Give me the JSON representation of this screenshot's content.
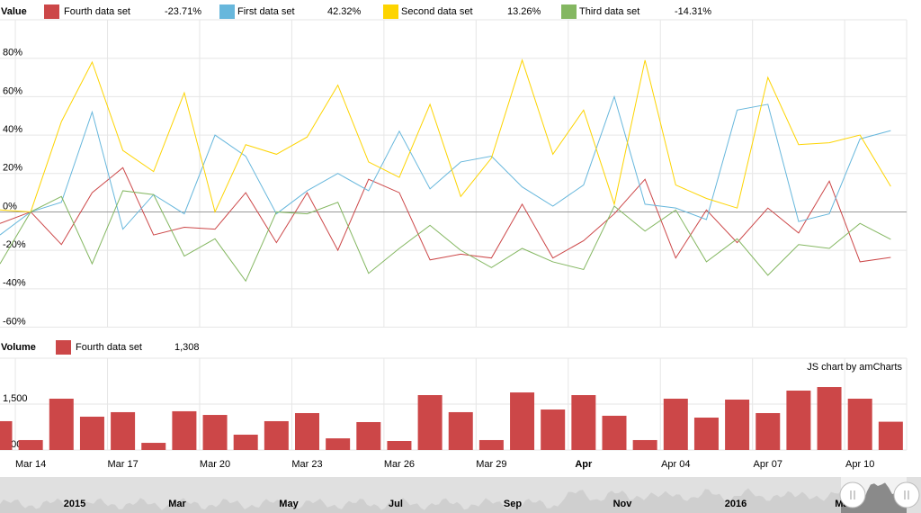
{
  "chart_data": [
    {
      "type": "line",
      "legend_title": "Value",
      "series": [
        {
          "name": "Fourth data set",
          "color": "#cc4748",
          "legend_value": "-23.71%",
          "values": [
            -6,
            0,
            -17,
            10,
            23,
            -12,
            -8,
            -9,
            10,
            -16,
            10,
            -20,
            17,
            10,
            -25,
            -22,
            -24,
            4,
            -24,
            -15,
            -1,
            17,
            -24,
            1,
            -16,
            2,
            -11,
            16,
            -26,
            -23.71
          ]
        },
        {
          "name": "First data set",
          "color": "#67b7dc",
          "legend_value": "42.32%",
          "values": [
            -12,
            0,
            5,
            52,
            -9,
            9,
            -1,
            40,
            29,
            -1,
            11,
            20,
            11,
            42,
            12,
            26,
            29,
            13,
            3,
            14,
            60,
            4,
            2,
            -4,
            53,
            56,
            -5,
            -1,
            38,
            42.32
          ]
        },
        {
          "name": "Second data set",
          "color": "#fdd400",
          "legend_value": "13.26%",
          "values": [
            1,
            0,
            47,
            78,
            32,
            21,
            62,
            0,
            35,
            30,
            39,
            66,
            26,
            18,
            56,
            8,
            28,
            79,
            30,
            53,
            4,
            79,
            14,
            7,
            2,
            70,
            35,
            36,
            40,
            13.26
          ]
        },
        {
          "name": "Third data set",
          "color": "#84b761",
          "legend_value": "-14.31%",
          "values": [
            -27,
            0,
            8,
            -27,
            11,
            9,
            -23,
            -14,
            -36,
            0,
            -1,
            5,
            -32,
            -19,
            -7,
            -20,
            -29,
            -19,
            -26,
            -30,
            3,
            -10,
            1,
            -26,
            -14,
            -33,
            -17,
            -19,
            -6,
            -14.31
          ]
        }
      ],
      "ylim": [
        -60,
        100
      ],
      "yticks": [
        {
          "value": -60,
          "label": "-60%"
        },
        {
          "value": -40,
          "label": "-40%"
        },
        {
          "value": -20,
          "label": "-20%"
        },
        {
          "value": 0,
          "label": "0%"
        },
        {
          "value": 20,
          "label": "20%"
        },
        {
          "value": 40,
          "label": "40%"
        },
        {
          "value": 60,
          "label": "60%"
        },
        {
          "value": 80,
          "label": "80%"
        }
      ],
      "grid": true
    },
    {
      "type": "bar",
      "legend_title": "Volume",
      "credit": "JS chart by amCharts",
      "categories": [
        null,
        "Mar 14",
        null,
        null,
        "Mar 17",
        null,
        null,
        "Mar 20",
        null,
        null,
        "Mar 23",
        null,
        null,
        "Mar 26",
        null,
        null,
        "Mar 29",
        null,
        null,
        "Apr",
        null,
        null,
        "Apr 04",
        null,
        null,
        "Apr 07",
        null,
        null,
        "Apr 10",
        null
      ],
      "series": [
        {
          "name": "Fourth data set",
          "color": "#cc4748",
          "legend_value": "1,308",
          "values": [
            1314,
            1108,
            1559,
            1363,
            1412,
            1078,
            1422,
            1382,
            1167,
            1314,
            1402,
            1127,
            1304,
            1098,
            1598,
            1412,
            1108,
            1627,
            1441,
            1598,
            1373,
            1108,
            1559,
            1353,
            1549,
            1402,
            1647,
            1686,
            1559,
            1308
          ]
        }
      ],
      "ylim": [
        1000,
        2000
      ],
      "yticks": [
        {
          "value": 1000,
          "label": "1,000"
        },
        {
          "value": 1500,
          "label": "1,500"
        }
      ],
      "grid": true
    }
  ],
  "scroller": {
    "labels": [
      "2015",
      "Mar",
      "May",
      "Jul",
      "Sep",
      "Nov",
      "2016",
      "Mar"
    ]
  }
}
